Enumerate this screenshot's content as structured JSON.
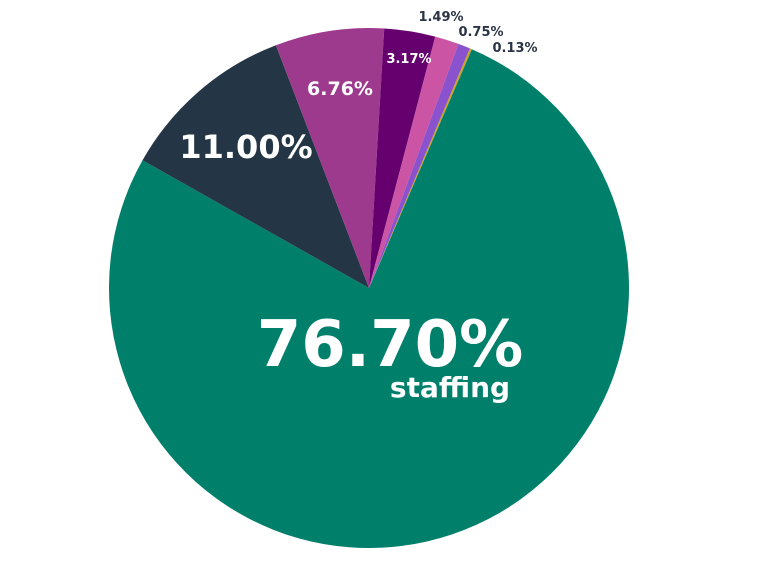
{
  "chart_data": {
    "type": "pie",
    "slices": [
      {
        "value": 76.7,
        "label": "76.70%",
        "sublabel": "staffing",
        "color": "#007f6b"
      },
      {
        "value": 11.0,
        "label": "11.00%",
        "sublabel": "",
        "color": "#243645"
      },
      {
        "value": 6.76,
        "label": "6.76%",
        "sublabel": "",
        "color": "#9e3a8e"
      },
      {
        "value": 3.17,
        "label": "3.17%",
        "sublabel": "",
        "color": "#66006e"
      },
      {
        "value": 1.49,
        "label": "1.49%",
        "sublabel": "",
        "color": "#cc54a4"
      },
      {
        "value": 0.75,
        "label": "0.75%",
        "sublabel": "",
        "color": "#8a52cc"
      },
      {
        "value": 0.13,
        "label": "0.13%",
        "sublabel": "",
        "color": "#c9a227"
      }
    ]
  }
}
